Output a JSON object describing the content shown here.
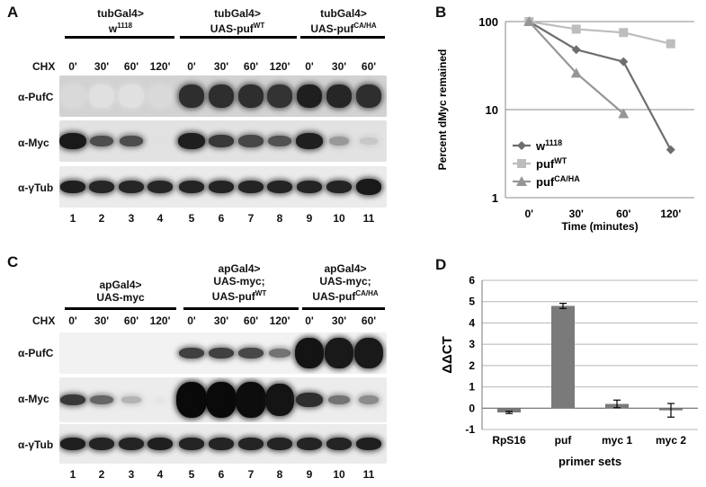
{
  "panels": {
    "A": {
      "letter": "A",
      "groups": [
        {
          "line1": "tubGal4>",
          "line2": "w",
          "sup2": "1118"
        },
        {
          "line1": "tubGal4>",
          "line2": "UAS-puf",
          "sup2": "WT"
        },
        {
          "line1": "tubGal4>",
          "line2": "UAS-puf",
          "sup2": "CA/HA"
        }
      ],
      "chx_label": "CHX",
      "chx_times": [
        "0'",
        "30'",
        "60'",
        "120'",
        "0'",
        "30'",
        "60'",
        "120'",
        "0'",
        "30'",
        "60'"
      ],
      "rows": [
        "α-PufC",
        "α-Myc",
        "α-γTub"
      ],
      "lanes": [
        "1",
        "2",
        "3",
        "4",
        "5",
        "6",
        "7",
        "8",
        "9",
        "10",
        "11"
      ]
    },
    "C": {
      "letter": "C",
      "groups": [
        {
          "line1": "apGal4>",
          "line2": "UAS-myc",
          "line3": "",
          "sup3": ""
        },
        {
          "line1": "apGal4>",
          "line2": "UAS-myc;",
          "line3": "UAS-puf",
          "sup3": "WT"
        },
        {
          "line1": "apGal4>",
          "line2": "UAS-myc;",
          "line3": "UAS-puf",
          "sup3": "CA/HA"
        }
      ],
      "chx_label": "CHX",
      "chx_times": [
        "0'",
        "30'",
        "60'",
        "120'",
        "0'",
        "30'",
        "60'",
        "120'",
        "0'",
        "30'",
        "60'"
      ],
      "rows": [
        "α-PufC",
        "α-Myc",
        "α-γTub"
      ],
      "lanes": [
        "1",
        "2",
        "3",
        "4",
        "5",
        "6",
        "7",
        "8",
        "9",
        "10",
        "11"
      ]
    },
    "B": {
      "letter": "B",
      "chart_data": {
        "type": "line",
        "categories": [
          "0'",
          "30'",
          "60'",
          "120'"
        ],
        "xlabel": "Time (minutes)",
        "ylabel": "Percent dMyc remained",
        "yscale": "log",
        "ylim": [
          1,
          100
        ],
        "yticks": [
          "1",
          "10",
          "100"
        ],
        "series": [
          {
            "name": "w",
            "sup": "1118",
            "marker": "diamond",
            "color": "#6e6e6e",
            "values": [
              100,
              48,
              35,
              3.5
            ]
          },
          {
            "name": "puf",
            "sup": "WT",
            "marker": "square",
            "color": "#bdbdbd",
            "values": [
              100,
              82,
              75,
              56
            ]
          },
          {
            "name": "puf",
            "sup": "CA/HA",
            "marker": "triangle",
            "color": "#969696",
            "values": [
              100,
              26,
              9,
              null
            ]
          }
        ],
        "legend": "inside-lower-left"
      }
    },
    "D": {
      "letter": "D",
      "chart_data": {
        "type": "bar",
        "categories": [
          "RpS16",
          "puf",
          "myc 1",
          "myc 2"
        ],
        "values": [
          -0.2,
          4.8,
          0.2,
          -0.1
        ],
        "errors": [
          0.05,
          0.12,
          0.18,
          0.32
        ],
        "xlabel": "primer sets",
        "ylabel": "ΔΔCT",
        "ylim": [
          -1,
          6
        ],
        "yticks": [
          "-1",
          "0",
          "1",
          "2",
          "3",
          "4",
          "5",
          "6"
        ],
        "bar_color": "#7a7a7a"
      }
    }
  }
}
